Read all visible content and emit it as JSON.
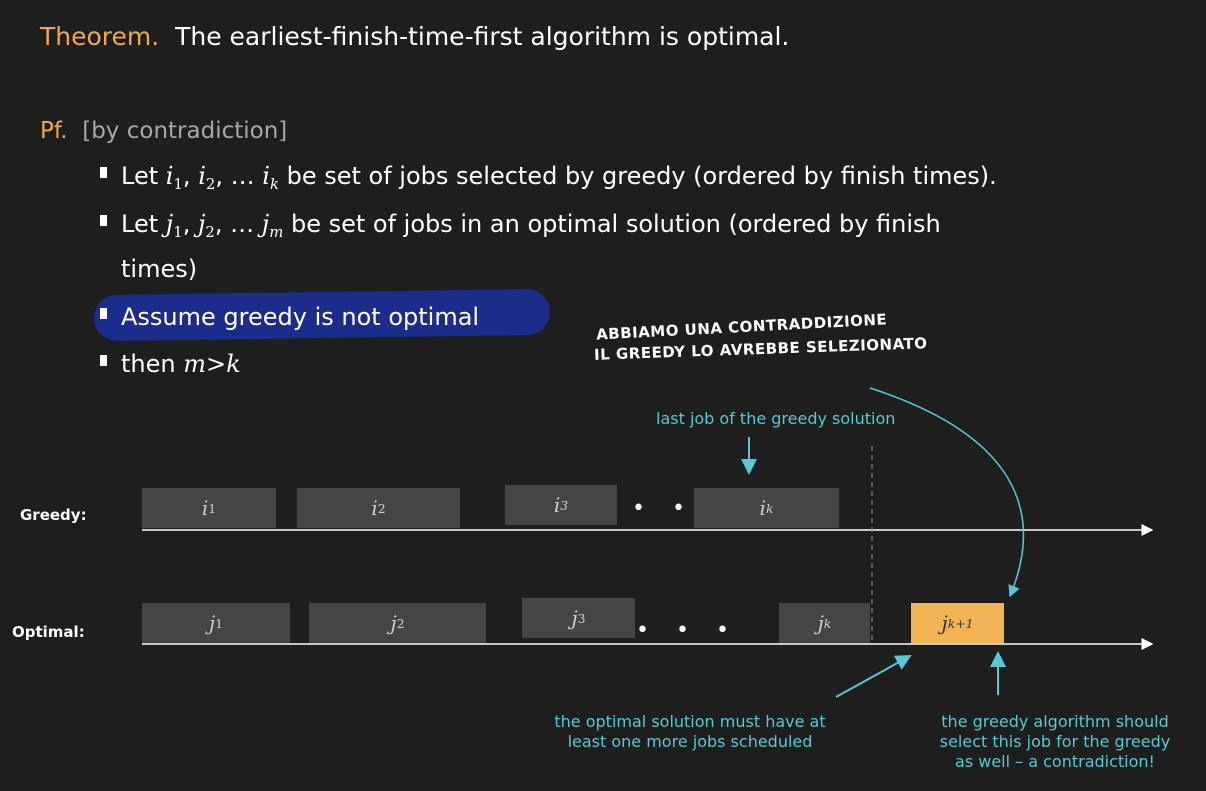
{
  "theorem": {
    "label": "Theorem.",
    "text": "The earliest-finish-time-first algorithm is optimal."
  },
  "proof": {
    "label": "Pf.",
    "text": "[by contradiction]"
  },
  "bullets": {
    "b1": {
      "pre": "Let ",
      "i": "i",
      "s1": "1",
      "s2": "2",
      "sk": "k",
      "sep": ", ",
      "dots": "… ",
      "post": " be set of jobs selected by greedy (ordered by finish times)."
    },
    "b2": {
      "pre": "Let ",
      "j": "j",
      "s1": "1",
      "s2": "2",
      "sm": "m",
      "sep": ", ",
      "dots": "… ",
      "post": " be set of jobs in an optimal solution (ordered by finish",
      "cont": "times)"
    },
    "b3": "Assume greedy is not optimal",
    "b4": {
      "pre": "then ",
      "expr": "m>k"
    }
  },
  "handwritten": {
    "line1": "ABBIAMO UNA CONTRADDIZIONE",
    "line2": "IL GREEDY LO AVREBBE SELEZIONATO"
  },
  "diagram": {
    "greedy_label": "Greedy:",
    "optimal_label": "Optimal:",
    "greedy_jobs": [
      {
        "v": "i",
        "s": "1"
      },
      {
        "v": "i",
        "s": "2"
      },
      {
        "v": "i",
        "s": "3"
      },
      {
        "v": "i",
        "s": "k"
      }
    ],
    "optimal_jobs": [
      {
        "v": "j",
        "s": "1"
      },
      {
        "v": "j",
        "s": "2"
      },
      {
        "v": "j",
        "s": "3"
      },
      {
        "v": "j",
        "s": "k"
      },
      {
        "v": "j",
        "s": "k+1"
      }
    ],
    "ellipsis": "• • •",
    "annotation_top": "last job of the greedy solution",
    "annotation_left": [
      "the optimal solution must have at",
      "least one more jobs scheduled"
    ],
    "annotation_right": [
      "the greedy algorithm should",
      "select this job for the greedy",
      "as well – a contradiction!"
    ]
  },
  "colors": {
    "background": "#1e1e1e",
    "accent_orange": "#f0a84c",
    "highlight_blue": "#1c2c8a",
    "annotation_teal": "#55c9d4",
    "job_box": "#454545",
    "job_highlight": "#f0b453"
  }
}
